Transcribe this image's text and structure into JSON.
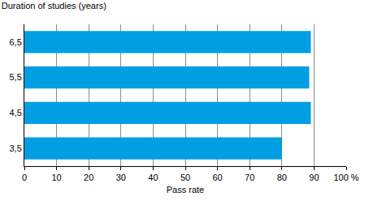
{
  "chart_data": {
    "type": "bar",
    "orientation": "horizontal",
    "ylabel": "Duration of studies (years)",
    "xlabel": "Pass rate",
    "categories": [
      "3,5",
      "4,5",
      "5,5",
      "6,5"
    ],
    "values": [
      80,
      89,
      88.5,
      89
    ],
    "color": "#009fe3",
    "xlim": [
      0,
      100
    ],
    "xticks": [
      0,
      10,
      20,
      30,
      40,
      50,
      60,
      70,
      80,
      90,
      {
        "value": 100,
        "label": "100 %"
      }
    ],
    "grid": true
  }
}
